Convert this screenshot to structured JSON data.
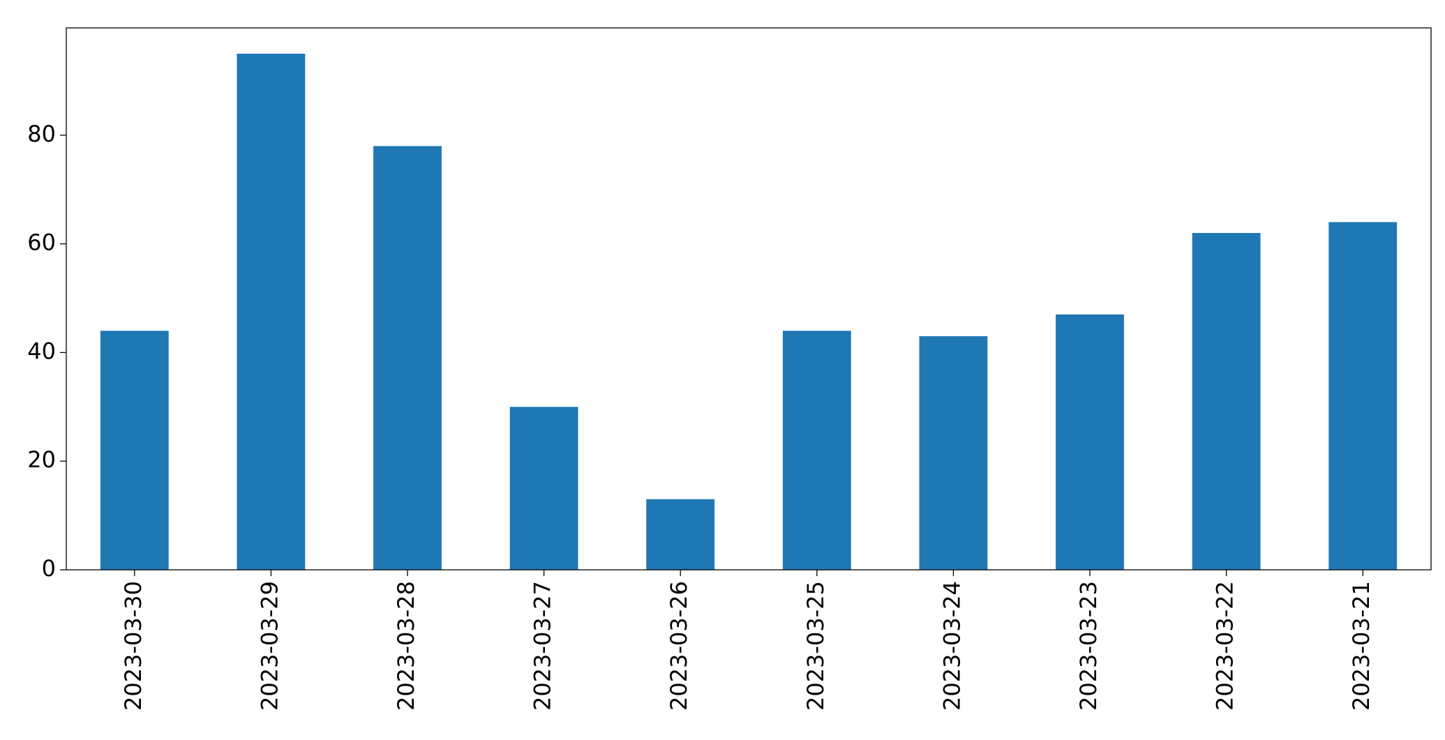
{
  "chart_data": {
    "type": "bar",
    "categories": [
      "2023-03-30",
      "2023-03-29",
      "2023-03-28",
      "2023-03-27",
      "2023-03-26",
      "2023-03-25",
      "2023-03-24",
      "2023-03-23",
      "2023-03-22",
      "2023-03-21"
    ],
    "values": [
      44,
      95,
      78,
      30,
      13,
      44,
      43,
      47,
      62,
      64
    ],
    "color": "#1f77b4",
    "ylim": [
      0,
      99.75
    ],
    "yticks": [
      0,
      20,
      40,
      60,
      80
    ],
    "grid": false
  }
}
